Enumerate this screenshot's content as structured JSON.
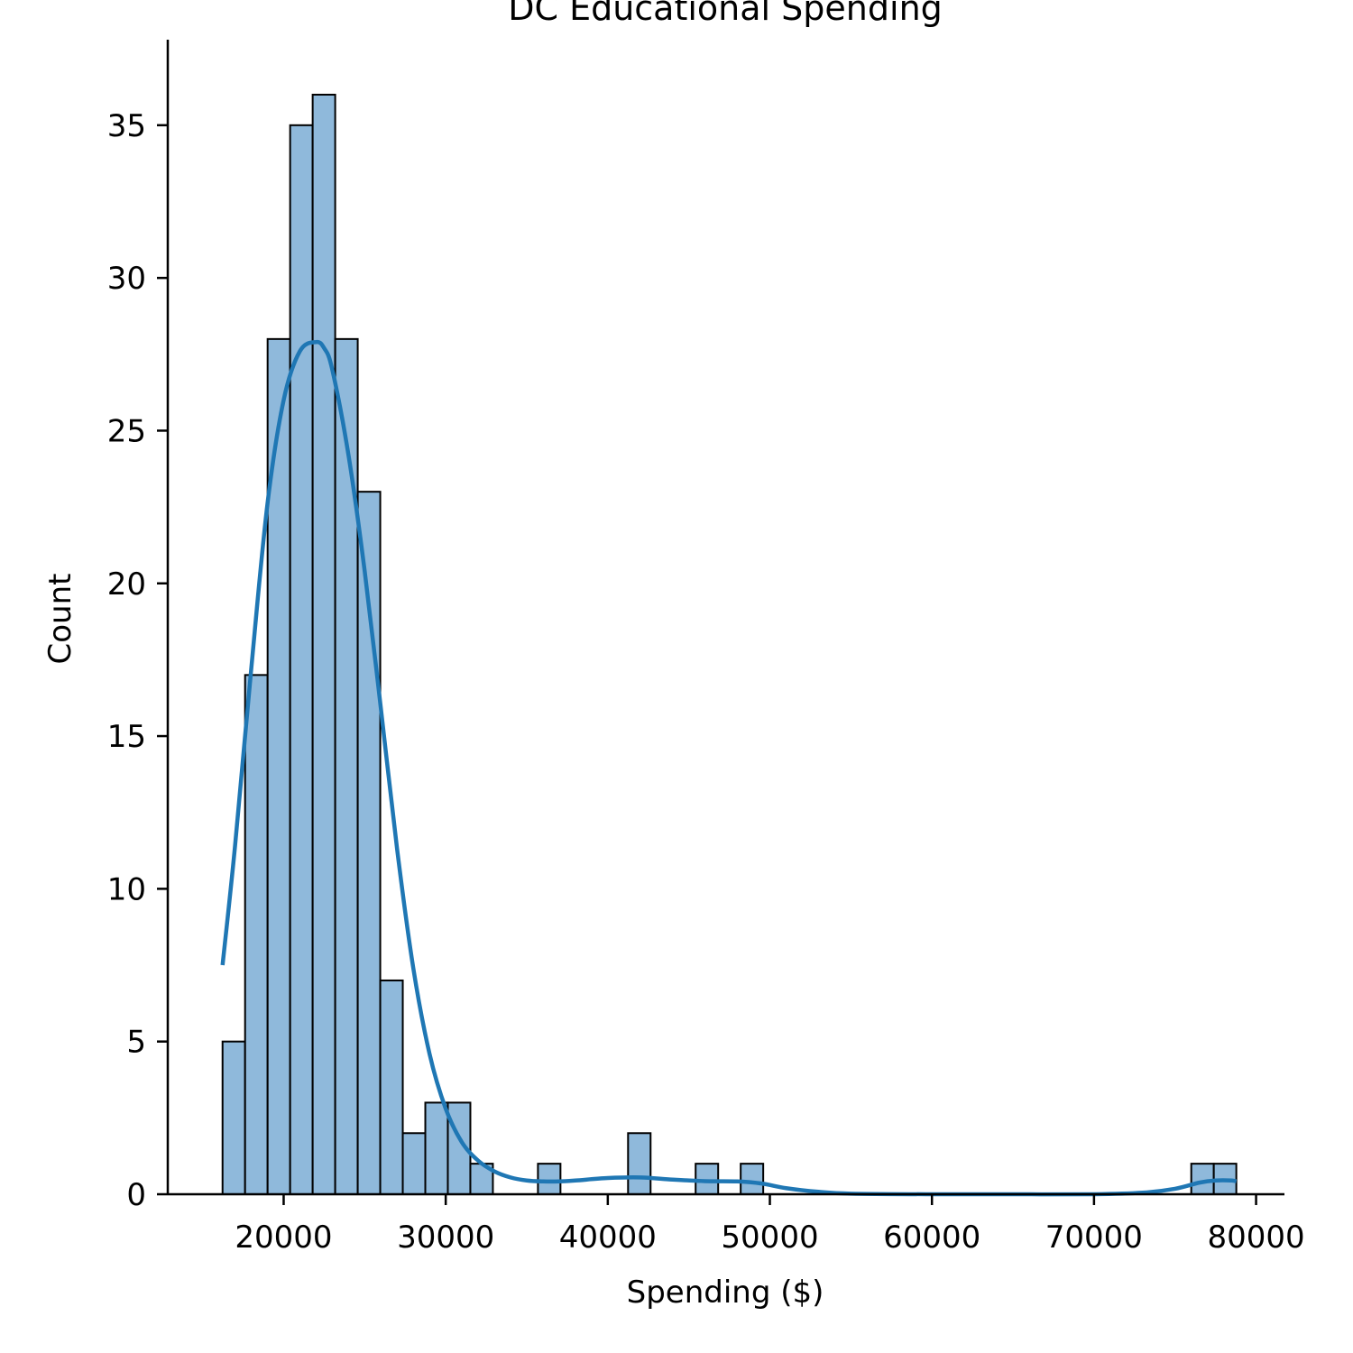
{
  "chart_data": {
    "type": "bar",
    "title": "DC Educational Spending",
    "xlabel": "Spending ($)",
    "ylabel": "Count",
    "xlim": [
      12850,
      81750
    ],
    "ylim": [
      0,
      37.8
    ],
    "xticks": [
      20000,
      30000,
      40000,
      50000,
      60000,
      70000,
      80000
    ],
    "yticks": [
      0,
      5,
      10,
      15,
      20,
      25,
      30,
      35
    ],
    "grid": false,
    "bin_edges": [
      16230,
      17620,
      19010,
      20400,
      21790,
      23180,
      24570,
      25960,
      27350,
      28740,
      30130,
      31520,
      32910,
      34300,
      35690,
      37080,
      38470,
      39860,
      41250,
      42640,
      44030,
      45420,
      46810,
      48200,
      49590,
      50980,
      52370,
      53760,
      55150,
      56540,
      57930,
      59320,
      60710,
      62100,
      63490,
      64880,
      66270,
      67660,
      69050,
      70440,
      71830,
      73220,
      74610,
      76000,
      77390,
      78780
    ],
    "counts": [
      5,
      17,
      28,
      35,
      36,
      28,
      23,
      7,
      2,
      3,
      3,
      1,
      0,
      0,
      1,
      0,
      0,
      0,
      2,
      0,
      0,
      1,
      0,
      1,
      0,
      0,
      0,
      0,
      0,
      0,
      0,
      0,
      0,
      0,
      0,
      0,
      0,
      0,
      0,
      0,
      0,
      0,
      0,
      1,
      1
    ],
    "kde": {
      "x": [
        16230,
        17000,
        18000,
        19000,
        20000,
        21000,
        22000,
        22500,
        23000,
        24000,
        25000,
        26000,
        27000,
        28000,
        29000,
        30000,
        31000,
        32000,
        33000,
        34000,
        35000,
        36000,
        37000,
        38000,
        40000,
        42000,
        44000,
        46000,
        48000,
        49500,
        51000,
        53000,
        55000,
        60000,
        65000,
        70000,
        73000,
        75000,
        76500,
        77500,
        78500,
        78780
      ],
      "y": [
        7.5,
        11.4,
        17.2,
        22.6,
        26.0,
        27.6,
        27.9,
        27.7,
        27.0,
        24.2,
        20.4,
        15.9,
        11.3,
        7.4,
        4.6,
        2.8,
        1.7,
        1.1,
        0.75,
        0.55,
        0.45,
        0.42,
        0.42,
        0.45,
        0.53,
        0.55,
        0.48,
        0.43,
        0.42,
        0.35,
        0.2,
        0.08,
        0.02,
        0.0,
        0.0,
        0.0,
        0.05,
        0.18,
        0.38,
        0.45,
        0.45,
        0.42
      ]
    },
    "colors": {
      "bar_fill": "#8fb9db",
      "bar_edge": "#000000",
      "kde_line": "#1f77b4"
    }
  }
}
